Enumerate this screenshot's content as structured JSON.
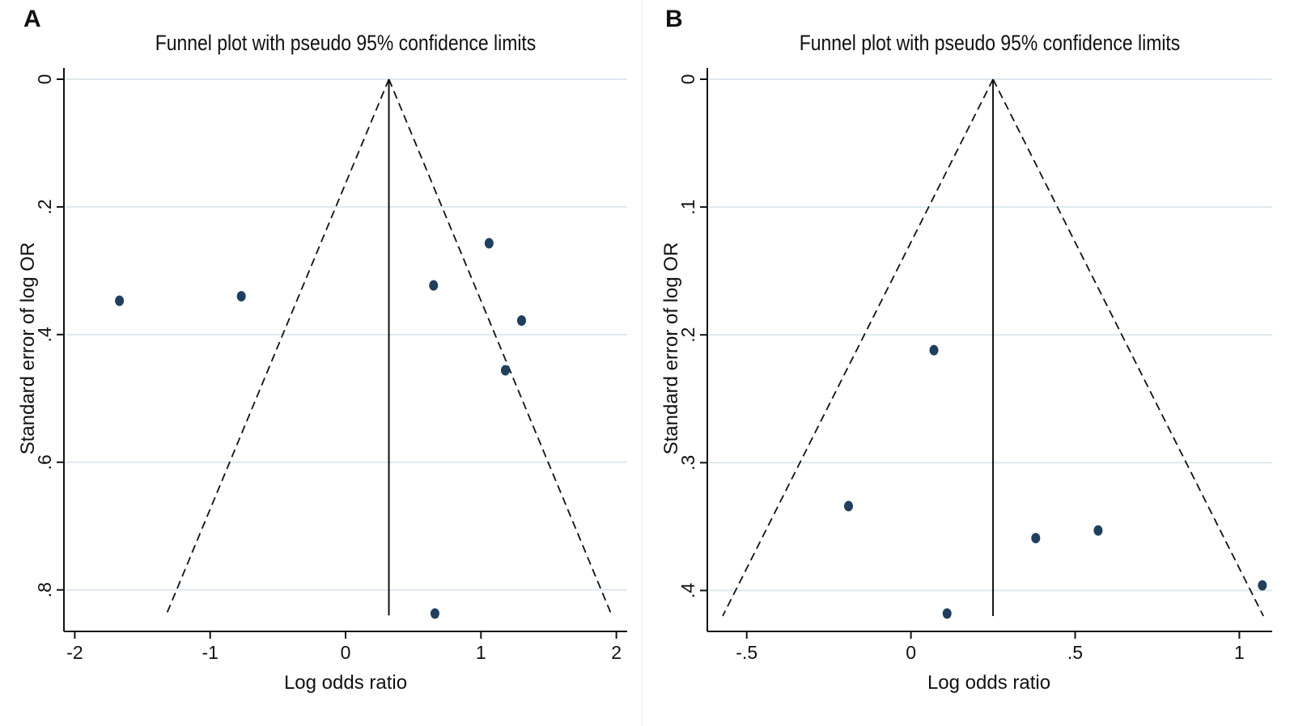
{
  "chart_data": [
    {
      "type": "scatter",
      "panel": "A",
      "title": "Funnel plot with pseudo 95% confidence limits",
      "xlabel": "Log odds ratio",
      "ylabel": "Standard error of log OR",
      "xlim": [
        -2.08,
        2.08
      ],
      "ylim": [
        0,
        0.865
      ],
      "y_reversed": true,
      "x_ticks": [
        -2,
        -1,
        0,
        1,
        2
      ],
      "x_tick_labels": [
        "-2",
        "-1",
        "0",
        "1",
        "2"
      ],
      "y_ticks": [
        0,
        0.2,
        0.4,
        0.6,
        0.8
      ],
      "y_tick_labels": [
        "0",
        ".2",
        ".4",
        ".6",
        ".8"
      ],
      "grid": true,
      "pooled_estimate": 0.32,
      "funnel_max_se": 0.84,
      "points": [
        {
          "x": -1.67,
          "y": 0.347
        },
        {
          "x": -0.77,
          "y": 0.34
        },
        {
          "x": 0.65,
          "y": 0.323
        },
        {
          "x": 1.06,
          "y": 0.257
        },
        {
          "x": 1.3,
          "y": 0.378
        },
        {
          "x": 1.18,
          "y": 0.456
        },
        {
          "x": 0.66,
          "y": 0.837
        }
      ]
    },
    {
      "type": "scatter",
      "panel": "B",
      "title": "Funnel plot with pseudo 95% confidence limits",
      "xlabel": "Log odds ratio",
      "ylabel": "Standard error of log OR",
      "xlim": [
        -0.62,
        1.1
      ],
      "ylim": [
        0,
        0.432
      ],
      "y_reversed": true,
      "x_ticks": [
        -0.5,
        0,
        0.5,
        1
      ],
      "x_tick_labels": [
        "-.5",
        "0",
        ".5",
        "1"
      ],
      "y_ticks": [
        0,
        0.1,
        0.2,
        0.3,
        0.4
      ],
      "y_tick_labels": [
        "0",
        ".1",
        ".2",
        ".3",
        ".4"
      ],
      "grid": true,
      "pooled_estimate": 0.25,
      "funnel_max_se": 0.42,
      "points": [
        {
          "x": 0.07,
          "y": 0.212
        },
        {
          "x": -0.19,
          "y": 0.334
        },
        {
          "x": 0.38,
          "y": 0.359
        },
        {
          "x": 0.57,
          "y": 0.353
        },
        {
          "x": 1.07,
          "y": 0.396
        },
        {
          "x": 0.11,
          "y": 0.418
        }
      ]
    }
  ],
  "colors": {
    "marker": "#1f3f5f",
    "grid": "#dde9ee",
    "axis": "#111111",
    "divider": "#ececec"
  }
}
